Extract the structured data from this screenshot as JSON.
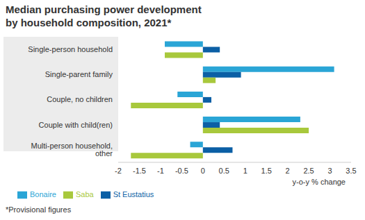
{
  "chart_data": {
    "type": "bar",
    "orientation": "horizontal",
    "title": "Median purchasing power development by household composition, 2021*",
    "x_label": "y-o-y % change",
    "annotations": [
      "*Provisional figures"
    ],
    "categories": [
      "Single-person household",
      "Single-parent family",
      "Couple, no children",
      "Couple with child(ren)",
      "Multi-person household, other"
    ],
    "series": [
      {
        "name": "Bonaire",
        "color": "#2aa5d6",
        "values": [
          -0.9,
          3.1,
          -0.6,
          2.3,
          -0.3
        ]
      },
      {
        "name": "St Eustatius",
        "color": "#0b5fa5",
        "values": [
          0.4,
          0.9,
          0.2,
          0.4,
          0.7
        ]
      },
      {
        "name": "Saba",
        "color": "#a8c83c",
        "values": [
          -0.9,
          0.3,
          -1.7,
          2.5,
          -1.7
        ]
      }
    ],
    "xlim": [
      -2,
      3.5
    ],
    "xticks": [
      -2,
      -1.5,
      -1,
      -0.5,
      0,
      0.5,
      1,
      1.5,
      2,
      2.5,
      3,
      3.5
    ],
    "grid": false,
    "legend": "bottom-left"
  }
}
